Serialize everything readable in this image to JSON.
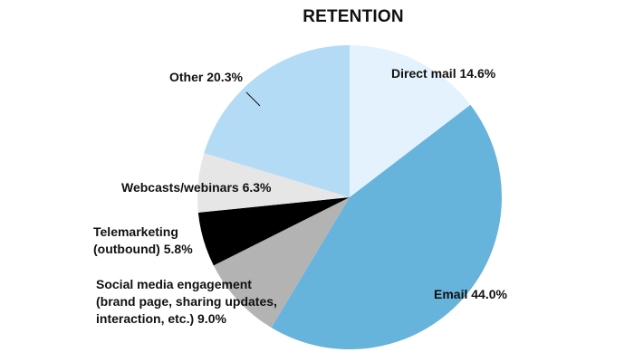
{
  "chart_data": {
    "type": "pie",
    "title": "RETENTION",
    "slices": [
      {
        "label": "Direct mail",
        "value": 14.6,
        "display": [
          "Direct mail 14.6%"
        ],
        "color": "#e3f2fc"
      },
      {
        "label": "Email",
        "value": 44.0,
        "display": [
          "Email 44.0%"
        ],
        "color": "#66b3db"
      },
      {
        "label": "Social media engagement (brand page, sharing updates, interaction, etc.)",
        "value": 9.0,
        "display": [
          "Social media engagement",
          "(brand page, sharing updates,",
          "interaction, etc.) 9.0%"
        ],
        "color": "#b3b3b3"
      },
      {
        "label": "Telemarketing (outbound)",
        "value": 5.8,
        "display": [
          "Telemarketing",
          "(outbound) 5.8%"
        ],
        "color": "#000000"
      },
      {
        "label": "Webcasts/webinars",
        "value": 6.3,
        "display": [
          "Webcasts/webinars 6.3%"
        ],
        "color": "#e6e6e6"
      },
      {
        "label": "Other",
        "value": 20.3,
        "display": [
          "Other 20.3%"
        ],
        "color": "#b3dbf5"
      }
    ],
    "start_angle": "12 o'clock",
    "direction": "clockwise",
    "legend": "none (labels on and beside slices)"
  }
}
